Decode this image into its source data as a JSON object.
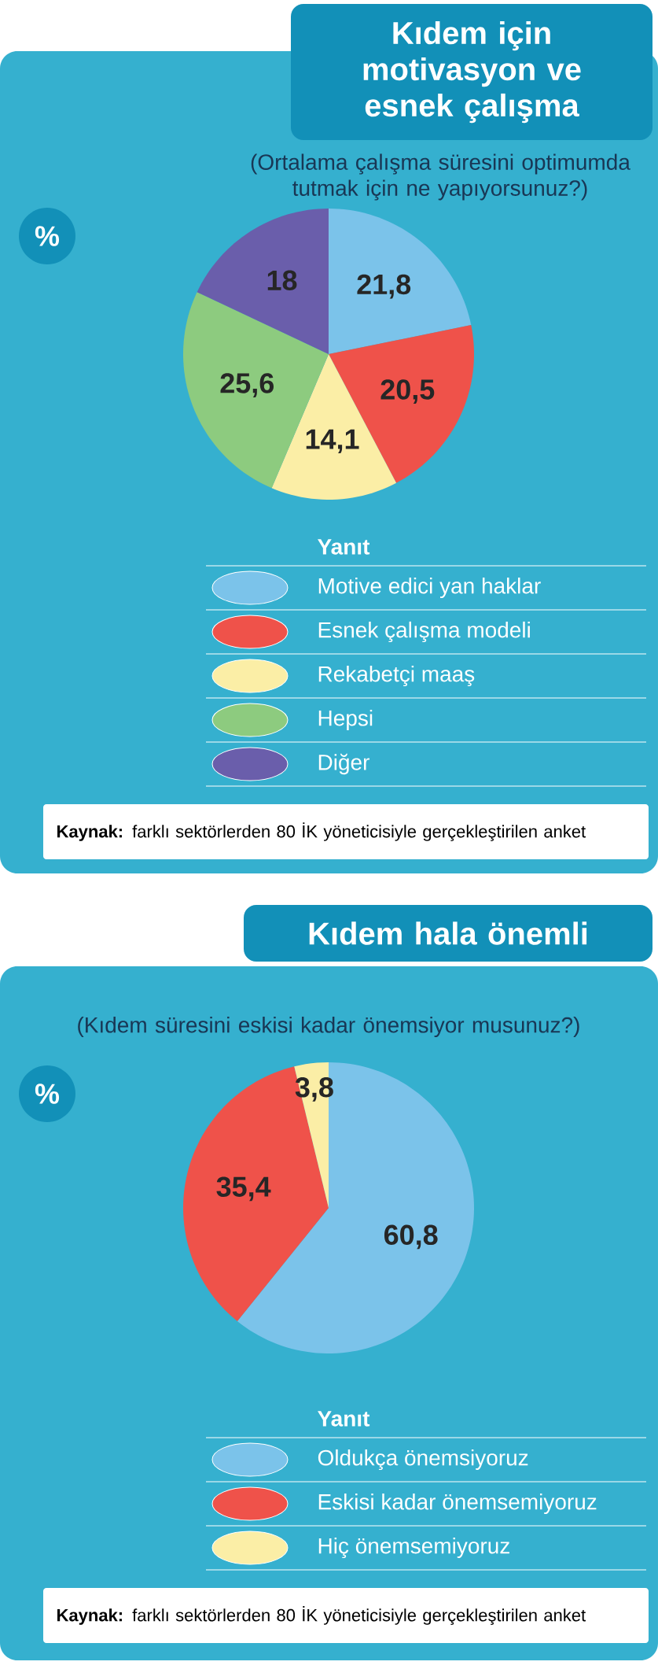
{
  "chart_data": [
    {
      "type": "pie",
      "title": "Kıdem için motivasyon ve esnek çalışma",
      "subtitle": "(Ortalama çalışma süresini optimumda tutmak için ne yapıyorsunuz?)",
      "categories": [
        "Motive edici yan haklar",
        "Esnek çalışma modeli",
        "Rekabetçi maaş",
        "Hepsi",
        "Diğer"
      ],
      "values": [
        21.8,
        20.5,
        14.1,
        25.6,
        18
      ],
      "value_labels": [
        "21,8",
        "20,5",
        "14,1",
        "25,6",
        "18"
      ],
      "colors": [
        "#7bc3ea",
        "#ef524a",
        "#fbeea6",
        "#8dcb7f",
        "#6a5eab"
      ],
      "legend": "bottom",
      "legend_title": "Yanıt",
      "annotations": [
        "%",
        "**Kaynak:** farklı sektörlerden 80 İK yöneticisiyle gerçekleştirilen anket"
      ]
    },
    {
      "type": "pie",
      "title": "Kıdem hala önemli",
      "subtitle": "(Kıdem süresini eskisi kadar önemsiyor musunuz?)",
      "categories": [
        "Oldukça önemsiyoruz",
        "Eskisi kadar önemsemiyoruz",
        "Hiç önemsemiyoruz"
      ],
      "values": [
        60.8,
        35.4,
        3.8
      ],
      "value_labels": [
        "60,8",
        "35,4",
        "3,8"
      ],
      "colors": [
        "#7bc3ea",
        "#ef524a",
        "#fbeea6"
      ],
      "legend": "bottom",
      "legend_title": "Yanıt",
      "annotations": [
        "%",
        "**Kaynak:** farklı sektörlerden 80 İK yöneticisiyle gerçekleştirilen anket"
      ]
    }
  ]
}
